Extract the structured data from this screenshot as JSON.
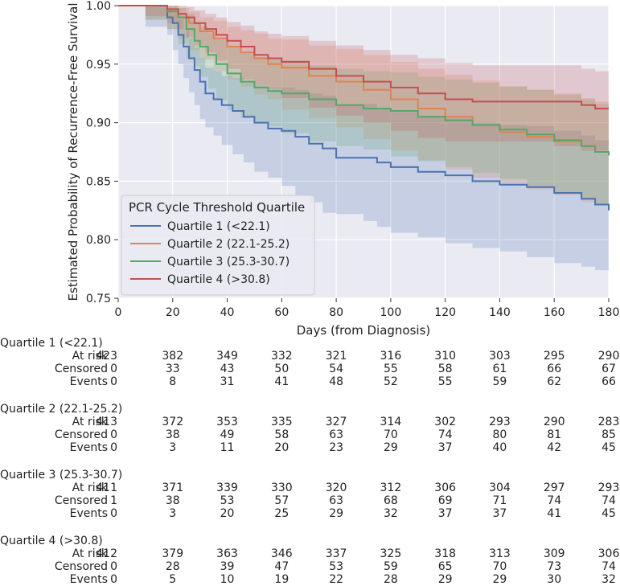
{
  "chart_data": {
    "type": "line",
    "title": "",
    "xlabel": "Days (from Diagnosis)",
    "ylabel": "Estimated Probability of Recurrence-Free Survival",
    "xlim": [
      0,
      180
    ],
    "ylim": [
      0.75,
      1.0
    ],
    "x_ticks": [
      0,
      20,
      40,
      60,
      80,
      100,
      120,
      140,
      160,
      180
    ],
    "y_ticks": [
      0.75,
      0.8,
      0.85,
      0.9,
      0.95,
      1.0
    ],
    "y_tick_labels": [
      "0.75",
      "0.80",
      "0.85",
      "0.90",
      "0.95",
      "1.00"
    ],
    "grid": true,
    "legend_title": "PCR Cycle Threshold Quartile",
    "legend_position": "lower-left",
    "series": [
      {
        "name": "Quartile 1 (<22.1)",
        "color": "#4c72b0",
        "x": [
          0,
          10,
          18,
          20,
          22,
          24,
          26,
          28,
          30,
          32,
          35,
          38,
          42,
          46,
          50,
          55,
          60,
          65,
          70,
          75,
          80,
          90,
          95,
          100,
          110,
          120,
          130,
          140,
          150,
          160,
          170,
          175,
          180
        ],
        "y": [
          1.0,
          1.0,
          0.99,
          0.985,
          0.975,
          0.965,
          0.955,
          0.945,
          0.935,
          0.925,
          0.92,
          0.915,
          0.91,
          0.905,
          0.9,
          0.895,
          0.893,
          0.888,
          0.882,
          0.878,
          0.87,
          0.87,
          0.866,
          0.862,
          0.858,
          0.855,
          0.85,
          0.847,
          0.845,
          0.84,
          0.835,
          0.83,
          0.825
        ],
        "lower": [
          1.0,
          1.0,
          0.982,
          0.975,
          0.962,
          0.95,
          0.938,
          0.926,
          0.915,
          0.903,
          0.896,
          0.889,
          0.881,
          0.873,
          0.866,
          0.858,
          0.853,
          0.846,
          0.838,
          0.832,
          0.823,
          0.822,
          0.816,
          0.811,
          0.806,
          0.802,
          0.797,
          0.793,
          0.79,
          0.785,
          0.78,
          0.777,
          0.774
        ],
        "upper": [
          1.0,
          1.0,
          0.997,
          0.994,
          0.988,
          0.98,
          0.972,
          0.964,
          0.955,
          0.947,
          0.944,
          0.94,
          0.938,
          0.936,
          0.933,
          0.93,
          0.93,
          0.928,
          0.925,
          0.923,
          0.915,
          0.916,
          0.912,
          0.909,
          0.906,
          0.904,
          0.9,
          0.898,
          0.897,
          0.893,
          0.889,
          0.885,
          0.879
        ]
      },
      {
        "name": "Quartile 2 (22.1-25.2)",
        "color": "#dd8452",
        "x": [
          0,
          10,
          18,
          22,
          26,
          30,
          35,
          40,
          45,
          50,
          55,
          60,
          70,
          80,
          90,
          100,
          110,
          120,
          130,
          140,
          150,
          160,
          170,
          175,
          180
        ],
        "y": [
          1.0,
          1.0,
          0.995,
          0.99,
          0.985,
          0.978,
          0.972,
          0.965,
          0.96,
          0.955,
          0.95,
          0.947,
          0.94,
          0.935,
          0.928,
          0.92,
          0.912,
          0.905,
          0.898,
          0.892,
          0.888,
          0.884,
          0.88,
          0.875,
          0.874
        ],
        "lower": [
          1.0,
          1.0,
          0.988,
          0.98,
          0.972,
          0.962,
          0.954,
          0.944,
          0.937,
          0.931,
          0.924,
          0.92,
          0.911,
          0.904,
          0.896,
          0.886,
          0.876,
          0.868,
          0.86,
          0.853,
          0.848,
          0.843,
          0.838,
          0.832,
          0.83
        ],
        "upper": [
          1.0,
          1.0,
          1.0,
          0.998,
          0.995,
          0.99,
          0.987,
          0.982,
          0.979,
          0.976,
          0.972,
          0.971,
          0.966,
          0.963,
          0.958,
          0.952,
          0.946,
          0.941,
          0.936,
          0.931,
          0.928,
          0.925,
          0.921,
          0.918,
          0.917
        ]
      },
      {
        "name": "Quartile 3 (25.3-30.7)",
        "color": "#55a868",
        "x": [
          0,
          10,
          18,
          22,
          25,
          28,
          30,
          33,
          36,
          40,
          45,
          50,
          55,
          60,
          70,
          80,
          90,
          100,
          110,
          120,
          130,
          140,
          150,
          160,
          170,
          175,
          180
        ],
        "y": [
          1.0,
          1.0,
          0.995,
          0.99,
          0.98,
          0.97,
          0.965,
          0.958,
          0.95,
          0.942,
          0.935,
          0.93,
          0.927,
          0.925,
          0.92,
          0.915,
          0.912,
          0.91,
          0.905,
          0.902,
          0.898,
          0.894,
          0.89,
          0.885,
          0.88,
          0.875,
          0.872
        ],
        "lower": [
          1.0,
          1.0,
          0.988,
          0.98,
          0.967,
          0.955,
          0.948,
          0.939,
          0.929,
          0.919,
          0.911,
          0.904,
          0.9,
          0.897,
          0.891,
          0.884,
          0.88,
          0.877,
          0.871,
          0.867,
          0.862,
          0.857,
          0.852,
          0.846,
          0.84,
          0.834,
          0.83
        ],
        "upper": [
          1.0,
          1.0,
          1.0,
          0.998,
          0.993,
          0.985,
          0.982,
          0.977,
          0.971,
          0.965,
          0.959,
          0.956,
          0.954,
          0.953,
          0.949,
          0.946,
          0.944,
          0.943,
          0.939,
          0.937,
          0.934,
          0.931,
          0.928,
          0.924,
          0.92,
          0.916,
          0.914
        ]
      },
      {
        "name": "Quartile 4 (>30.8)",
        "color": "#c44e52",
        "x": [
          0,
          10,
          18,
          22,
          25,
          28,
          32,
          36,
          40,
          45,
          50,
          55,
          60,
          70,
          80,
          90,
          100,
          110,
          120,
          130,
          140,
          150,
          160,
          170,
          175,
          180
        ],
        "y": [
          1.0,
          1.0,
          0.997,
          0.993,
          0.99,
          0.985,
          0.98,
          0.975,
          0.97,
          0.965,
          0.958,
          0.955,
          0.952,
          0.946,
          0.94,
          0.935,
          0.93,
          0.925,
          0.92,
          0.918,
          0.918,
          0.918,
          0.918,
          0.915,
          0.912,
          0.912
        ],
        "lower": [
          1.0,
          1.0,
          0.991,
          0.985,
          0.98,
          0.973,
          0.966,
          0.96,
          0.953,
          0.946,
          0.937,
          0.933,
          0.929,
          0.921,
          0.913,
          0.906,
          0.9,
          0.893,
          0.887,
          0.884,
          0.884,
          0.884,
          0.884,
          0.88,
          0.876,
          0.876
        ],
        "upper": [
          1.0,
          1.0,
          1.0,
          1.0,
          0.999,
          0.996,
          0.993,
          0.99,
          0.986,
          0.983,
          0.978,
          0.976,
          0.974,
          0.97,
          0.966,
          0.962,
          0.958,
          0.955,
          0.951,
          0.949,
          0.949,
          0.949,
          0.949,
          0.946,
          0.944,
          0.944
        ]
      }
    ]
  },
  "risk_table": {
    "row_labels": [
      "At risk",
      "Censored",
      "Events"
    ],
    "timepoints": [
      0,
      20,
      40,
      60,
      80,
      100,
      120,
      140,
      160,
      180
    ],
    "groups": [
      {
        "title": "Quartile 1 (<22.1)",
        "at_risk": [
          "423",
          "382",
          "349",
          "332",
          "321",
          "316",
          "310",
          "303",
          "295",
          "290"
        ],
        "censored": [
          "0",
          "33",
          "43",
          "50",
          "54",
          "55",
          "58",
          "61",
          "66",
          "67"
        ],
        "events": [
          "0",
          "8",
          "31",
          "41",
          "48",
          "52",
          "55",
          "59",
          "62",
          "66"
        ]
      },
      {
        "title": "Quartile 2 (22.1-25.2)",
        "at_risk": [
          "413",
          "372",
          "353",
          "335",
          "327",
          "314",
          "302",
          "293",
          "290",
          "283"
        ],
        "censored": [
          "0",
          "38",
          "49",
          "58",
          "63",
          "70",
          "74",
          "80",
          "81",
          "85"
        ],
        "events": [
          "0",
          "3",
          "11",
          "20",
          "23",
          "29",
          "37",
          "40",
          "42",
          "45"
        ]
      },
      {
        "title": "Quartile 3 (25.3-30.7)",
        "at_risk": [
          "411",
          "371",
          "339",
          "330",
          "320",
          "312",
          "306",
          "304",
          "297",
          "293"
        ],
        "censored": [
          "1",
          "38",
          "53",
          "57",
          "63",
          "68",
          "69",
          "71",
          "74",
          "74"
        ],
        "events": [
          "0",
          "3",
          "20",
          "25",
          "29",
          "32",
          "37",
          "37",
          "41",
          "45"
        ]
      },
      {
        "title": "Quartile 4 (>30.8)",
        "at_risk": [
          "412",
          "379",
          "363",
          "346",
          "337",
          "325",
          "318",
          "313",
          "309",
          "306"
        ],
        "censored": [
          "0",
          "28",
          "39",
          "47",
          "53",
          "59",
          "65",
          "70",
          "73",
          "74"
        ],
        "events": [
          "0",
          "5",
          "10",
          "19",
          "22",
          "28",
          "29",
          "29",
          "30",
          "32"
        ]
      }
    ]
  }
}
